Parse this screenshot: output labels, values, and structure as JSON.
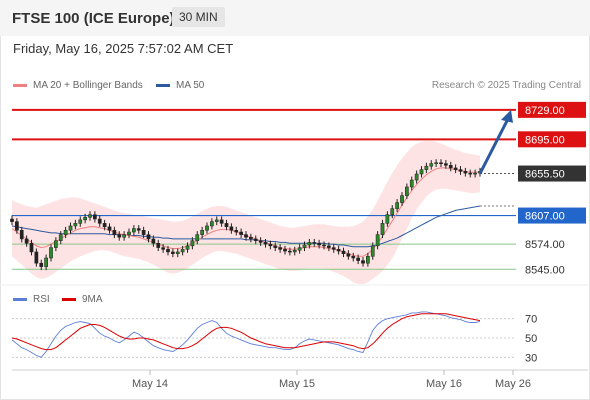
{
  "header": {
    "title": "FTSE 100 (ICE Europe)",
    "interval": "30 MIN"
  },
  "timestamp": "Friday, May 16, 2025 7:57:02 AM CET",
  "legend": {
    "ma20": {
      "label": "MA 20 + Bollinger Bands",
      "color": "#f08080"
    },
    "ma50": {
      "label": "MA 50",
      "color": "#2c5aa0"
    },
    "copyright": "Research © 2025 Trading Central"
  },
  "rsi_legend": {
    "rsi": {
      "label": "RSI",
      "color": "#5b7fd6"
    },
    "ma9": {
      "label": "9MA",
      "color": "#dd0000"
    }
  },
  "colors": {
    "resistance": "#dd1111",
    "pivot": "#2266cc",
    "support": "#88c888",
    "current": "#333333",
    "arrow": "#2c5aa0"
  },
  "chart_data": [
    {
      "type": "candlestick",
      "ylim": [
        8528,
        8745
      ],
      "xlabels": [
        "May 14",
        "May 15",
        "May 16",
        "May 26"
      ],
      "levels": [
        {
          "label": "8729.00",
          "value": 8729,
          "kind": "resistance"
        },
        {
          "label": "8695.00",
          "value": 8695,
          "kind": "resistance"
        },
        {
          "label": "8655.50",
          "value": 8655.5,
          "kind": "current"
        },
        {
          "label": "8607.00",
          "value": 8607,
          "kind": "pivot"
        },
        {
          "label": "8574.00",
          "value": 8574,
          "kind": "support"
        },
        {
          "label": "8545.00",
          "value": 8545,
          "kind": "support"
        }
      ],
      "closes": [
        8600,
        8590,
        8580,
        8575,
        8565,
        8552,
        8548,
        8558,
        8570,
        8578,
        8585,
        8590,
        8595,
        8598,
        8602,
        8605,
        8608,
        8603,
        8598,
        8594,
        8590,
        8585,
        8582,
        8585,
        8588,
        8592,
        8590,
        8585,
        8580,
        8575,
        8570,
        8568,
        8565,
        8563,
        8565,
        8568,
        8572,
        8578,
        8585,
        8590,
        8595,
        8600,
        8602,
        8598,
        8594,
        8590,
        8588,
        8585,
        8582,
        8580,
        8578,
        8576,
        8574,
        8572,
        8570,
        8568,
        8566,
        8565,
        8567,
        8570,
        8573,
        8576,
        8575,
        8573,
        8572,
        8570,
        8568,
        8566,
        8563,
        8560,
        8558,
        8555,
        8552,
        8560,
        8572,
        8585,
        8598,
        8608,
        8615,
        8622,
        8630,
        8640,
        8648,
        8655,
        8660,
        8664,
        8667,
        8668,
        8667,
        8665,
        8662,
        8660,
        8658,
        8656,
        8655,
        8656,
        8658
      ],
      "ma20": [
        8592,
        8588,
        8584,
        8580,
        8576,
        8572,
        8570,
        8571,
        8574,
        8577,
        8580,
        8584,
        8587,
        8590,
        8592,
        8593,
        8594,
        8594,
        8593,
        8592,
        8590,
        8588,
        8586,
        8585,
        8584,
        8583,
        8582,
        8580,
        8578,
        8576,
        8574,
        8572,
        8570,
        8569,
        8569,
        8570,
        8572,
        8575,
        8578,
        8582,
        8585,
        8588,
        8590,
        8591,
        8591,
        8590,
        8588,
        8586,
        8584,
        8582,
        8580,
        8578,
        8576,
        8574,
        8572,
        8570,
        8569,
        8568,
        8568,
        8569,
        8570,
        8571,
        8571,
        8571,
        8570,
        8569,
        8568,
        8567,
        8565,
        8563,
        8561,
        8560,
        8560,
        8563,
        8568,
        8575,
        8583,
        8592,
        8601,
        8610,
        8619,
        8628,
        8636,
        8643,
        8649,
        8654,
        8658,
        8661,
        8662,
        8662,
        8661,
        8660,
        8659,
        8658,
        8657,
        8657,
        8657
      ],
      "bb_upper": [
        8625,
        8622,
        8620,
        8618,
        8617,
        8616,
        8618,
        8620,
        8622,
        8624,
        8626,
        8627,
        8628,
        8628,
        8627,
        8625,
        8623,
        8621,
        8619,
        8617,
        8615,
        8613,
        8611,
        8610,
        8609,
        8608,
        8607,
        8606,
        8605,
        8604,
        8603,
        8602,
        8601,
        8600,
        8600,
        8601,
        8603,
        8606,
        8609,
        8612,
        8615,
        8617,
        8618,
        8618,
        8617,
        8615,
        8613,
        8611,
        8609,
        8607,
        8605,
        8603,
        8601,
        8599,
        8597,
        8595,
        8594,
        8593,
        8593,
        8594,
        8595,
        8596,
        8597,
        8597,
        8597,
        8596,
        8595,
        8594,
        8594,
        8594,
        8595,
        8597,
        8600,
        8606,
        8614,
        8624,
        8635,
        8646,
        8656,
        8665,
        8673,
        8680,
        8686,
        8690,
        8692,
        8693,
        8693,
        8692,
        8690,
        8688,
        8685,
        8683,
        8681,
        8679,
        8678,
        8677,
        8676
      ],
      "bb_lower": [
        8560,
        8555,
        8550,
        8545,
        8540,
        8536,
        8534,
        8535,
        8538,
        8542,
        8546,
        8550,
        8554,
        8557,
        8560,
        8562,
        8564,
        8566,
        8567,
        8567,
        8566,
        8564,
        8562,
        8560,
        8559,
        8558,
        8557,
        8555,
        8553,
        8550,
        8547,
        8544,
        8541,
        8540,
        8541,
        8543,
        8546,
        8550,
        8554,
        8558,
        8561,
        8564,
        8566,
        8566,
        8565,
        8564,
        8563,
        8561,
        8559,
        8557,
        8555,
        8553,
        8551,
        8549,
        8547,
        8545,
        8544,
        8543,
        8543,
        8544,
        8545,
        8546,
        8546,
        8546,
        8545,
        8544,
        8542,
        8540,
        8537,
        8534,
        8530,
        8528,
        8528,
        8530,
        8534,
        8538,
        8543,
        8550,
        8558,
        8568,
        8580,
        8592,
        8604,
        8614,
        8622,
        8629,
        8634,
        8637,
        8638,
        8638,
        8637,
        8636,
        8635,
        8634,
        8633,
        8633,
        8634
      ],
      "ma50": [
        8595,
        8594,
        8593,
        8592,
        8591,
        8590,
        8589,
        8588,
        8587,
        8587,
        8586,
        8586,
        8586,
        8586,
        8586,
        8586,
        8586,
        8586,
        8586,
        8586,
        8585,
        8585,
        8585,
        8585,
        8584,
        8584,
        8584,
        8583,
        8583,
        8582,
        8582,
        8581,
        8581,
        8580,
        8580,
        8580,
        8580,
        8580,
        8580,
        8580,
        8580,
        8580,
        8580,
        8580,
        8580,
        8580,
        8580,
        8580,
        8579,
        8579,
        8579,
        8578,
        8578,
        8577,
        8577,
        8576,
        8576,
        8575,
        8575,
        8575,
        8575,
        8575,
        8575,
        8575,
        8575,
        8574,
        8574,
        8573,
        8573,
        8572,
        8571,
        8571,
        8571,
        8571,
        8572,
        8573,
        8575,
        8577,
        8579,
        8581,
        8584,
        8587,
        8590,
        8593,
        8596,
        8599,
        8602,
        8605,
        8607,
        8609,
        8611,
        8613,
        8614,
        8615,
        8616,
        8617,
        8618
      ],
      "forecast": {
        "from": 8655.5,
        "to": 8729
      }
    },
    {
      "type": "line",
      "series_names": [
        "RSI",
        "9MA"
      ],
      "ylim": [
        20,
        80
      ],
      "yticks": [
        30,
        50,
        70
      ],
      "ytick_labels": [
        "30",
        "50",
        "70"
      ],
      "rsi": [
        48,
        44,
        40,
        38,
        35,
        32,
        30,
        36,
        44,
        52,
        58,
        62,
        64,
        66,
        67,
        66,
        65,
        60,
        55,
        52,
        50,
        47,
        45,
        48,
        52,
        56,
        54,
        50,
        46,
        42,
        40,
        38,
        37,
        36,
        39,
        43,
        48,
        54,
        60,
        64,
        66,
        68,
        66,
        60,
        55,
        52,
        50,
        48,
        46,
        44,
        43,
        42,
        41,
        40,
        40,
        39,
        38,
        38,
        40,
        44,
        47,
        49,
        48,
        47,
        46,
        45,
        44,
        43,
        41,
        39,
        38,
        36,
        35,
        46,
        58,
        64,
        68,
        70,
        71,
        72,
        73,
        74,
        76,
        76,
        77,
        77,
        76,
        75,
        74,
        73,
        71,
        70,
        69,
        67,
        66,
        66,
        67
      ],
      "ma9": [
        50,
        49,
        47,
        45,
        43,
        41,
        39,
        38,
        38,
        40,
        44,
        48,
        52,
        56,
        60,
        62,
        64,
        64,
        63,
        61,
        58,
        55,
        52,
        50,
        49,
        49,
        50,
        50,
        49,
        48,
        46,
        44,
        42,
        40,
        39,
        39,
        40,
        42,
        45,
        49,
        53,
        57,
        60,
        61,
        61,
        60,
        58,
        56,
        53,
        50,
        48,
        46,
        44,
        43,
        42,
        41,
        40,
        40,
        40,
        41,
        42,
        43,
        44,
        45,
        46,
        46,
        46,
        45,
        44,
        43,
        42,
        40,
        39,
        40,
        44,
        49,
        55,
        60,
        64,
        67,
        70,
        72,
        73,
        74,
        75,
        75,
        75,
        75,
        75,
        75,
        74,
        73,
        72,
        71,
        70,
        69,
        68
      ]
    }
  ]
}
